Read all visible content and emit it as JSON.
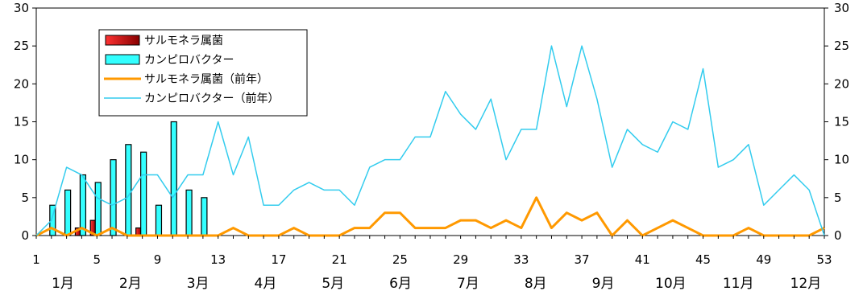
{
  "chart_data": {
    "type": "bar+line",
    "title": "",
    "x_ticks": [
      "1",
      "5",
      "9",
      "13",
      "17",
      "21",
      "25",
      "29",
      "33",
      "37",
      "41",
      "45",
      "49",
      "53"
    ],
    "months": [
      "1月",
      "2月",
      "3月",
      "4月",
      "5月",
      "6月",
      "7月",
      "8月",
      "9月",
      "10月",
      "11月",
      "12月"
    ],
    "y_ticks_left": [
      "0",
      "5",
      "10",
      "15",
      "20",
      "25",
      "30"
    ],
    "y_ticks_right": [
      "0",
      "5",
      "10",
      "15",
      "20",
      "25",
      "30"
    ],
    "ylim": [
      0,
      30
    ],
    "xlim": [
      1,
      53
    ],
    "legend": [
      {
        "label": "サルモネラ属菌",
        "kind": "bar",
        "color": "#cc0000"
      },
      {
        "label": "カンピロバクター",
        "kind": "bar",
        "color": "#33ffff"
      },
      {
        "label": "サルモネラ属菌（前年）",
        "kind": "line",
        "color": "#ff9900"
      },
      {
        "label": "カンピロバクター（前年）",
        "kind": "line",
        "color": "#33ccee"
      }
    ],
    "bar_series": [
      {
        "name": "サルモネラ属菌",
        "color": "#cc0000",
        "x": [
          4,
          5,
          8
        ],
        "values": [
          1,
          2,
          1
        ]
      },
      {
        "name": "カンピロバクター",
        "color": "#33ffff",
        "x": [
          2,
          3,
          4,
          5,
          6,
          7,
          8,
          9,
          10,
          11,
          12
        ],
        "values": [
          4,
          6,
          8,
          7,
          10,
          12,
          11,
          4,
          15,
          6,
          5
        ]
      }
    ],
    "line_series": [
      {
        "name": "サルモネラ属菌（前年）",
        "color": "#ff9900",
        "values": [
          0,
          1,
          0,
          1,
          0,
          1,
          0,
          0,
          0,
          0,
          0,
          0,
          0,
          1,
          0,
          0,
          0,
          1,
          0,
          0,
          0,
          1,
          1,
          3,
          3,
          1,
          1,
          1,
          2,
          2,
          1,
          2,
          1,
          5,
          1,
          3,
          2,
          3,
          0,
          2,
          0,
          1,
          2,
          1,
          0,
          0,
          0,
          1,
          0,
          0,
          0,
          0,
          1
        ]
      },
      {
        "name": "カンピロバクター（前年）",
        "color": "#33ccee",
        "values": [
          0,
          2,
          9,
          8,
          5,
          4,
          5,
          8,
          8,
          5,
          8,
          8,
          15,
          8,
          13,
          4,
          4,
          6,
          7,
          6,
          6,
          4,
          9,
          10,
          10,
          13,
          13,
          19,
          16,
          14,
          18,
          10,
          14,
          14,
          25,
          17,
          25,
          18,
          9,
          14,
          12,
          11,
          15,
          14,
          22,
          9,
          10,
          12,
          4,
          6,
          8,
          6,
          0
        ]
      }
    ]
  }
}
